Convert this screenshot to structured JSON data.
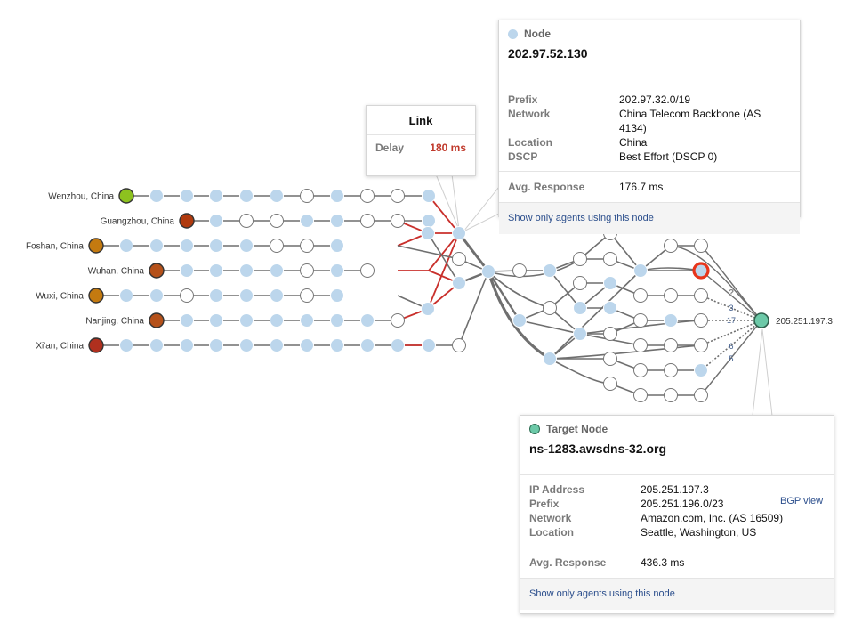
{
  "agents": [
    {
      "name": "Wenzhou, China",
      "color": "#8dc21f"
    },
    {
      "name": "Guangzhou, China",
      "color": "#b03a0e"
    },
    {
      "name": "Foshan, China",
      "color": "#c47a10"
    },
    {
      "name": "Wuhan, China",
      "color": "#b5511a"
    },
    {
      "name": "Wuxi, China",
      "color": "#c47a10"
    },
    {
      "name": "Nanjing, China",
      "color": "#b5511a"
    },
    {
      "name": "Xi'an, China",
      "color": "#b0301e"
    }
  ],
  "target": {
    "label": "205.251.197.3",
    "color": "#6cc9a8"
  },
  "path_counts": [
    "?",
    "3",
    "17",
    "6",
    "5"
  ],
  "colors": {
    "hop": "#bcd6ec",
    "unknown": "#ffffff",
    "link": "#6f6f6f",
    "high_delay": "#c9302c",
    "selected_ring": "#e8351b"
  },
  "link_tooltip": {
    "title": "Link",
    "delay_label": "Delay",
    "delay_value": "180 ms"
  },
  "node_tooltip": {
    "kind": "Node",
    "ip": "202.97.52.130",
    "rows": [
      {
        "k": "Prefix",
        "v": "202.97.32.0/19"
      },
      {
        "k": "Network",
        "v": "China Telecom Backbone (AS 4134)"
      },
      {
        "k": "Location",
        "v": "China"
      },
      {
        "k": "DSCP",
        "v": "Best Effort (DSCP 0)"
      }
    ],
    "avg_label": "Avg. Response",
    "avg_value": "176.7 ms",
    "footer": "Show only agents using this node"
  },
  "target_tooltip": {
    "kind": "Target Node",
    "host": "ns-1283.awsdns-32.org",
    "rows": [
      {
        "k": "IP Address",
        "v": "205.251.197.3"
      },
      {
        "k": "Prefix",
        "v": "205.251.196.0/23"
      },
      {
        "k": "Network",
        "v": "Amazon.com, Inc. (AS 16509)"
      },
      {
        "k": "Location",
        "v": "Seattle, Washington, US"
      }
    ],
    "bgp_link": "BGP view",
    "avg_label": "Avg. Response",
    "avg_value": "436.3 ms",
    "footer": "Show only agents using this node"
  }
}
